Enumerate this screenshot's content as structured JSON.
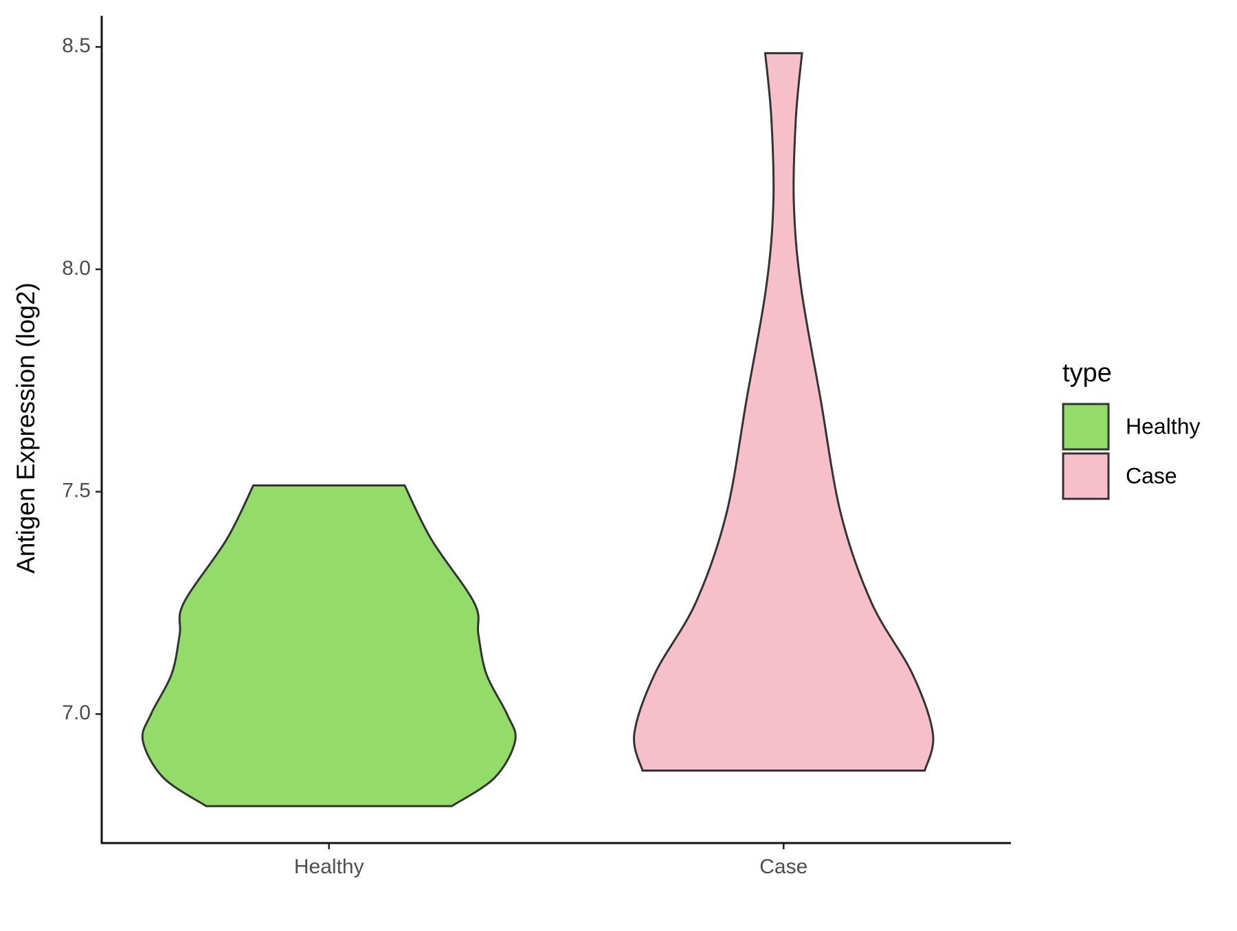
{
  "chart_data": {
    "type": "violin",
    "y_label": "Antigen Expression (log2)",
    "categories": [
      "Healthy",
      "Case"
    ],
    "ylim": [
      6.71,
      8.57
    ],
    "yticks": [
      {
        "value": 7,
        "label": "7.0"
      },
      7.5,
      {
        "value": 8,
        "label": "8.0"
      },
      8.5
    ],
    "legend_title": "type",
    "legend_position": "right",
    "series": [
      {
        "name": "Healthy",
        "color": "#93dc6a",
        "y": [
          6.793,
          6.857,
          6.94,
          7.0,
          7.089,
          7.179,
          7.25,
          7.393,
          7.514
        ],
        "width": [
          0.6,
          0.81,
          0.91,
          0.87,
          0.77,
          0.73,
          0.71,
          0.5,
          0.37
        ]
      },
      {
        "name": "Case",
        "color": "#f7bfca",
        "y": [
          6.873,
          6.955,
          7.09,
          7.25,
          7.45,
          7.71,
          7.96,
          8.15,
          8.34,
          8.486
        ],
        "width": [
          0.69,
          0.73,
          0.63,
          0.43,
          0.28,
          0.18,
          0.085,
          0.05,
          0.06,
          0.09
        ]
      }
    ]
  }
}
